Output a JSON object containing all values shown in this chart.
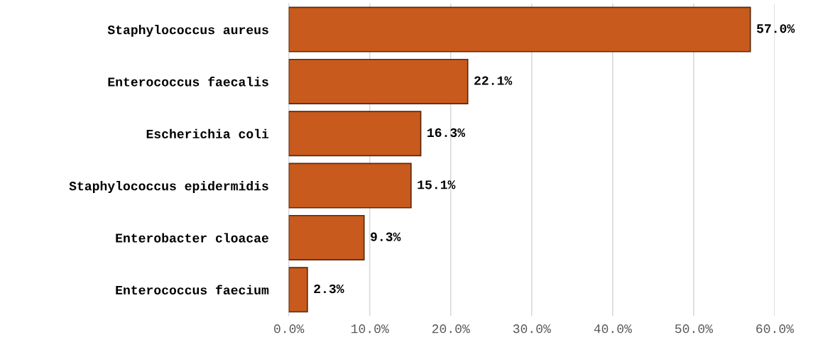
{
  "chart_data": {
    "type": "bar",
    "orientation": "horizontal",
    "categories": [
      "Staphylococcus aureus",
      "Enterococcus faecalis",
      "Escherichia coli",
      "Staphylococcus epidermidis",
      "Enterobacter cloacae",
      "Enterococcus faecium"
    ],
    "values": [
      57.0,
      22.1,
      16.3,
      15.1,
      9.3,
      2.3
    ],
    "value_labels": [
      "57.0%",
      "22.1%",
      "16.3%",
      "15.1%",
      "9.3%",
      "2.3%"
    ],
    "color": "#c85a1e",
    "xlim": [
      0,
      60
    ],
    "xticks": [
      {
        "value": 0,
        "label": "0.0%"
      },
      {
        "value": 10,
        "label": "10.0%"
      },
      {
        "value": 20,
        "label": "20.0%"
      },
      {
        "value": 30,
        "label": "30.0%"
      },
      {
        "value": 40,
        "label": "40.0%"
      },
      {
        "value": 50,
        "label": "50.0%"
      },
      {
        "value": 60,
        "label": "60.0%"
      }
    ],
    "grid": "x"
  }
}
